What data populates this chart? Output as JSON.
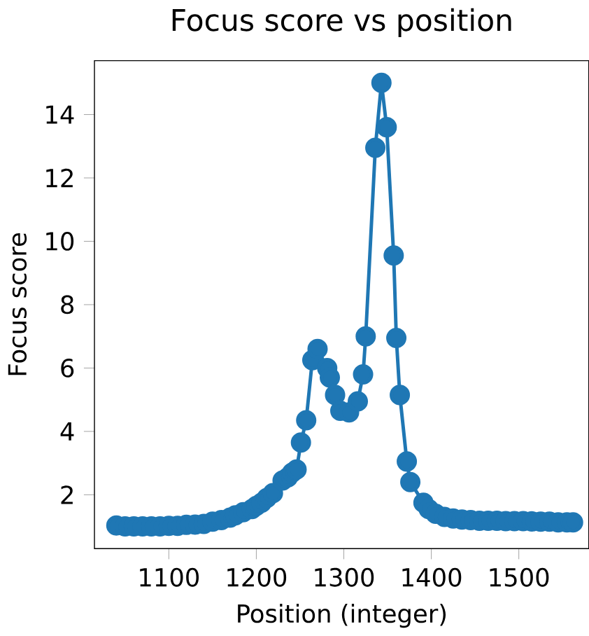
{
  "chart_data": {
    "type": "line",
    "title": "Focus score vs position",
    "xlabel": "Position (integer)",
    "ylabel": "Focus score",
    "marker": "circle",
    "xlim": [
      1015,
      1580
    ],
    "ylim": [
      0.3,
      15.7
    ],
    "xticks": [
      1100,
      1200,
      1300,
      1400,
      1500
    ],
    "yticks": [
      2,
      4,
      6,
      8,
      10,
      12,
      14
    ],
    "series": [
      {
        "color": "#1f77b4",
        "x": [
          1040,
          1050,
          1060,
          1070,
          1080,
          1090,
          1100,
          1110,
          1120,
          1130,
          1140,
          1150,
          1160,
          1170,
          1176,
          1185,
          1195,
          1200,
          1206,
          1212,
          1219,
          1230,
          1236,
          1241,
          1246,
          1251,
          1257,
          1264,
          1270,
          1281,
          1284,
          1290,
          1296,
          1306,
          1316,
          1322,
          1325,
          1336,
          1343,
          1349,
          1357,
          1360,
          1364,
          1372,
          1376,
          1391,
          1397,
          1405,
          1415,
          1425,
          1435,
          1445,
          1455,
          1465,
          1475,
          1485,
          1495,
          1505,
          1515,
          1525,
          1535,
          1545,
          1555,
          1562
        ],
        "values": [
          1.03,
          1.0,
          1.0,
          1.0,
          1.0,
          1.0,
          1.02,
          1.02,
          1.05,
          1.06,
          1.08,
          1.15,
          1.2,
          1.28,
          1.35,
          1.45,
          1.55,
          1.65,
          1.75,
          1.9,
          2.05,
          2.45,
          2.55,
          2.7,
          2.8,
          3.65,
          4.35,
          6.25,
          6.6,
          6.0,
          5.7,
          5.15,
          4.65,
          4.6,
          4.95,
          5.8,
          7.0,
          12.95,
          15.0,
          13.6,
          9.55,
          6.95,
          5.15,
          3.05,
          2.4,
          1.75,
          1.55,
          1.4,
          1.3,
          1.25,
          1.22,
          1.2,
          1.18,
          1.18,
          1.18,
          1.17,
          1.17,
          1.17,
          1.16,
          1.15,
          1.15,
          1.13,
          1.13,
          1.13
        ]
      }
    ]
  }
}
